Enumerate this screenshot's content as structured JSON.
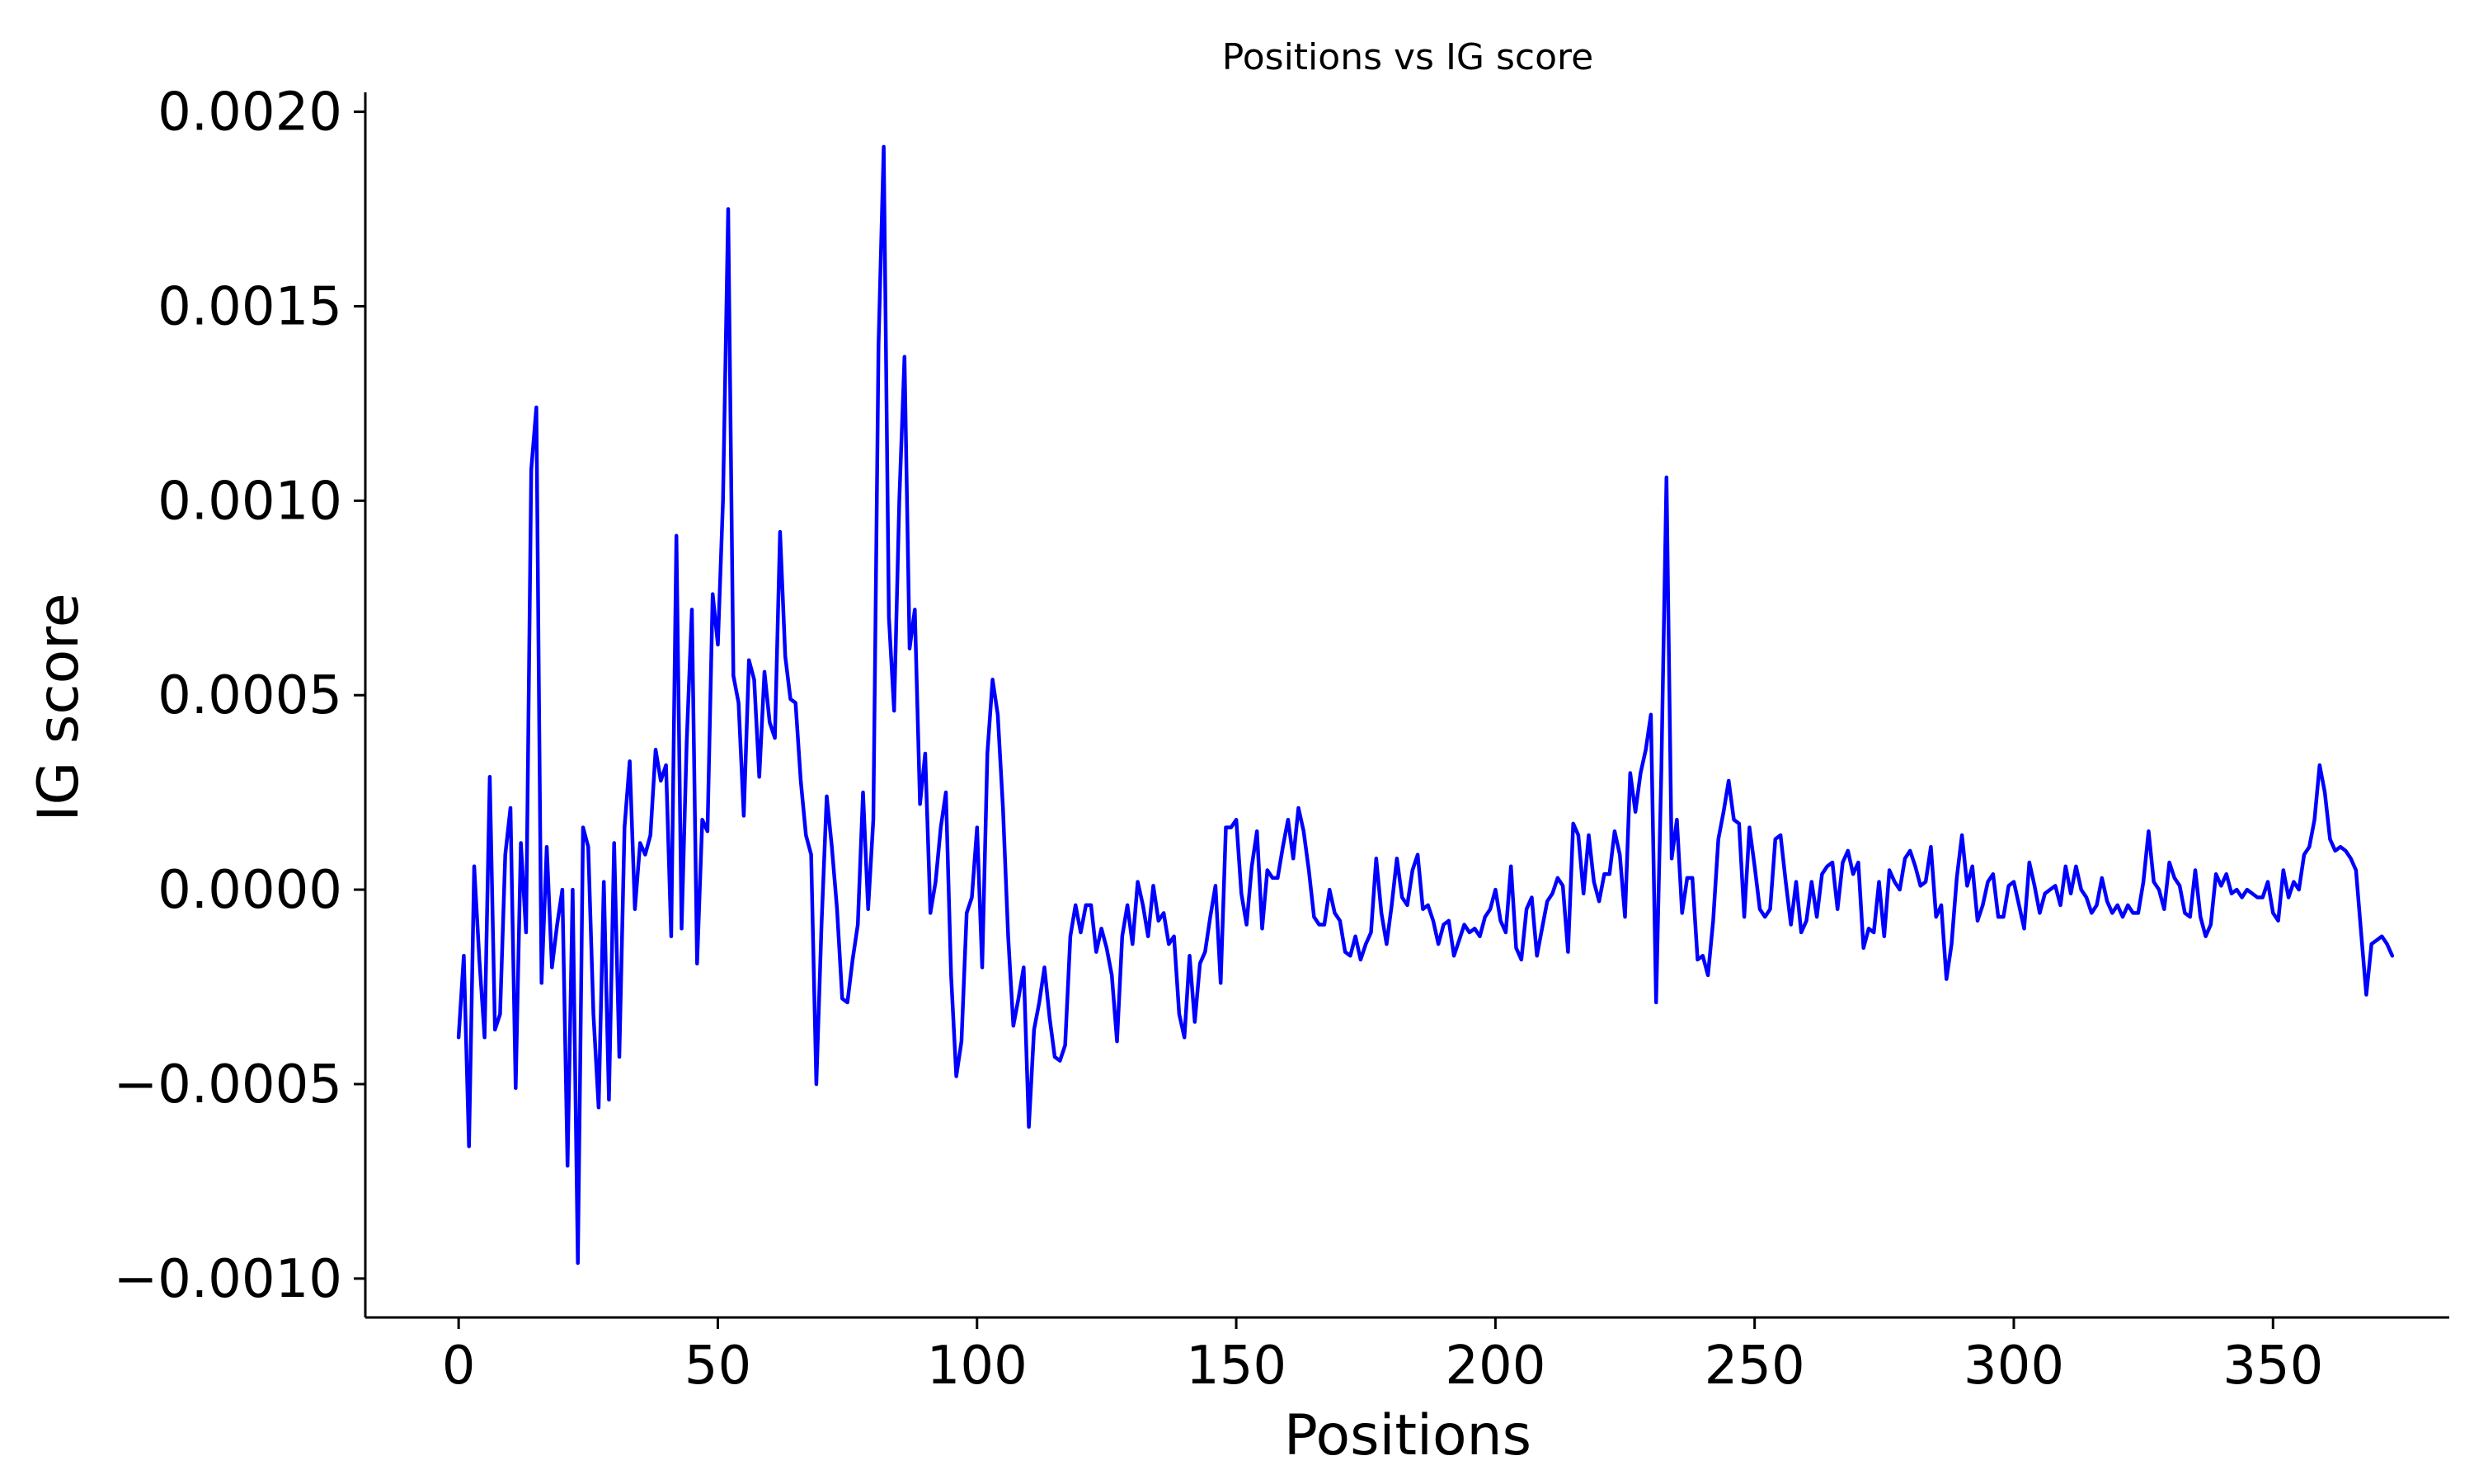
{
  "chart_data": {
    "type": "line",
    "title": "Positions vs IG score",
    "xlabel": "Positions",
    "ylabel": "IG score",
    "xlim": [
      -18,
      384
    ],
    "ylim": [
      -0.0011,
      0.00205
    ],
    "xticks": [
      0,
      50,
      100,
      150,
      200,
      250,
      300,
      350
    ],
    "xtick_labels": [
      "0",
      "50",
      "100",
      "150",
      "200",
      "250",
      "300",
      "350"
    ],
    "yticks": [
      -0.001,
      -0.0005,
      0.0,
      0.0005,
      0.001,
      0.0015,
      0.002
    ],
    "ytick_labels": [
      "−0.0010",
      "−0.0005",
      "0.0000",
      "0.0005",
      "0.0010",
      "0.0015",
      "0.0020"
    ],
    "grid": false,
    "colors": {
      "line": "#0000ff"
    },
    "series": [
      {
        "x_start": 0,
        "values": [
          -0.00038,
          -0.00017,
          -0.00066,
          6e-05,
          -0.00018,
          -0.00038,
          0.00029,
          -0.00036,
          -0.00032,
          9e-05,
          0.00021,
          -0.00051,
          0.00012,
          -0.00011,
          0.00108,
          0.00124,
          -0.00024,
          0.00011,
          -0.0002,
          -9e-05,
          0.0,
          -0.00071,
          0.0,
          -0.00096,
          0.00016,
          0.00011,
          -0.00032,
          -0.00056,
          2e-05,
          -0.00054,
          0.00012,
          -0.00043,
          0.00016,
          0.00033,
          -5e-05,
          0.00012,
          9e-05,
          0.00014,
          0.00036,
          0.00028,
          0.00032,
          -0.00012,
          0.00091,
          -0.0001,
          0.00038,
          0.00072,
          -0.00019,
          0.00018,
          0.00015,
          0.00076,
          0.00063,
          0.001,
          0.00175,
          0.00055,
          0.00048,
          0.00019,
          0.00059,
          0.00054,
          0.00029,
          0.00056,
          0.00043,
          0.00039,
          0.00092,
          0.0006,
          0.00049,
          0.00048,
          0.00028,
          0.00014,
          9e-05,
          -0.0005,
          -9e-05,
          0.00024,
          0.00011,
          -5e-05,
          -0.00028,
          -0.00029,
          -0.00018,
          -9e-05,
          0.00025,
          -5e-05,
          0.00018,
          0.0014,
          0.00191,
          0.0007,
          0.00046,
          0.001,
          0.00137,
          0.00062,
          0.00072,
          0.00022,
          0.00035,
          -6e-05,
          2e-05,
          0.00016,
          0.00025,
          -0.00022,
          -0.00048,
          -0.00039,
          -6e-05,
          -2e-05,
          0.00016,
          -0.0002,
          0.00035,
          0.00054,
          0.00045,
          0.00021,
          -0.00012,
          -0.00035,
          -0.00028,
          -0.0002,
          -0.00061,
          -0.00036,
          -0.00029,
          -0.0002,
          -0.00033,
          -0.00043,
          -0.00044,
          -0.0004,
          -0.00012,
          -4e-05,
          -0.00011,
          -4e-05,
          -4e-05,
          -0.00016,
          -0.0001,
          -0.00015,
          -0.00022,
          -0.00039,
          -0.00012,
          -4e-05,
          -0.00014,
          2e-05,
          -4e-05,
          -0.00012,
          1e-05,
          -8e-05,
          -6e-05,
          -0.00014,
          -0.00012,
          -0.00032,
          -0.00038,
          -0.00017,
          -0.00034,
          -0.00019,
          -0.00016,
          -7e-05,
          1e-05,
          -0.00024,
          0.00016,
          0.00016,
          0.00018,
          -1e-05,
          -9e-05,
          6e-05,
          0.00015,
          -0.0001,
          5e-05,
          3e-05,
          3e-05,
          0.00011,
          0.00018,
          8e-05,
          0.00021,
          0.00015,
          5e-05,
          -7e-05,
          -9e-05,
          -9e-05,
          0.0,
          -6e-05,
          -8e-05,
          -0.00016,
          -0.00017,
          -0.00012,
          -0.00018,
          -0.00014,
          -0.00011,
          8e-05,
          -6e-05,
          -0.00014,
          -4e-05,
          8e-05,
          -2e-05,
          -4e-05,
          5e-05,
          9e-05,
          -5e-05,
          -4e-05,
          -8e-05,
          -0.00014,
          -9e-05,
          -8e-05,
          -0.00017,
          -0.00013,
          -9e-05,
          -0.00011,
          -0.0001,
          -0.00012,
          -7e-05,
          -5e-05,
          0.0,
          -8e-05,
          -0.00011,
          6e-05,
          -0.00015,
          -0.00018,
          -5e-05,
          -2e-05,
          -0.00017,
          -0.0001,
          -3e-05,
          -1e-05,
          3e-05,
          1e-05,
          -0.00016,
          0.00017,
          0.00014,
          -1e-05,
          0.00014,
          2e-05,
          -3e-05,
          4e-05,
          4e-05,
          0.00015,
          9e-05,
          -7e-05,
          0.0003,
          0.0002,
          0.0003,
          0.00036,
          0.00045,
          -0.00029,
          0.0003,
          0.00106,
          8e-05,
          0.00018,
          -6e-05,
          3e-05,
          3e-05,
          -0.00018,
          -0.00017,
          -0.00022,
          -8e-05,
          0.00013,
          0.0002,
          0.00028,
          0.00018,
          0.00017,
          -7e-05,
          0.00016,
          6e-05,
          -5e-05,
          -7e-05,
          -5e-05,
          0.00013,
          0.00014,
          2e-05,
          -9e-05,
          2e-05,
          -0.00011,
          -8e-05,
          2e-05,
          -7e-05,
          4e-05,
          6e-05,
          7e-05,
          -5e-05,
          7e-05,
          0.0001,
          4e-05,
          7e-05,
          -0.00015,
          -0.0001,
          -0.00011,
          2e-05,
          -0.00012,
          5e-05,
          2e-05,
          0.0,
          8e-05,
          0.0001,
          6e-05,
          1e-05,
          2e-05,
          0.00011,
          -7e-05,
          -4e-05,
          -0.00023,
          -0.00014,
          3e-05,
          0.00014,
          1e-05,
          6e-05,
          -8e-05,
          -4e-05,
          2e-05,
          4e-05,
          -7e-05,
          -7e-05,
          1e-05,
          2e-05,
          -4e-05,
          -0.0001,
          7e-05,
          1e-05,
          -6e-05,
          -1e-05,
          0.0,
          1e-05,
          -4e-05,
          6e-05,
          -1e-05,
          6e-05,
          0.0,
          -2e-05,
          -6e-05,
          -4e-05,
          3e-05,
          -3e-05,
          -6e-05,
          -4e-05,
          -7e-05,
          -4e-05,
          -6e-05,
          -6e-05,
          2e-05,
          0.00015,
          2e-05,
          0.0,
          -5e-05,
          7e-05,
          3e-05,
          1e-05,
          -6e-05,
          -7e-05,
          5e-05,
          -7e-05,
          -0.00012,
          -9e-05,
          4e-05,
          1e-05,
          4e-05,
          -1e-05,
          0.0,
          -2e-05,
          0.0,
          -1e-05,
          -2e-05,
          -2e-05,
          2e-05,
          -6e-05,
          -8e-05,
          5e-05,
          -2e-05,
          2e-05,
          0.0,
          9e-05,
          0.00011,
          0.00018,
          0.00032,
          0.00025,
          0.00013,
          0.0001,
          0.00011,
          0.0001,
          8e-05,
          5e-05,
          -0.00011,
          -0.00027,
          -0.00014,
          -0.00013,
          -0.00012,
          -0.00014,
          -0.00017
        ]
      }
    ]
  }
}
